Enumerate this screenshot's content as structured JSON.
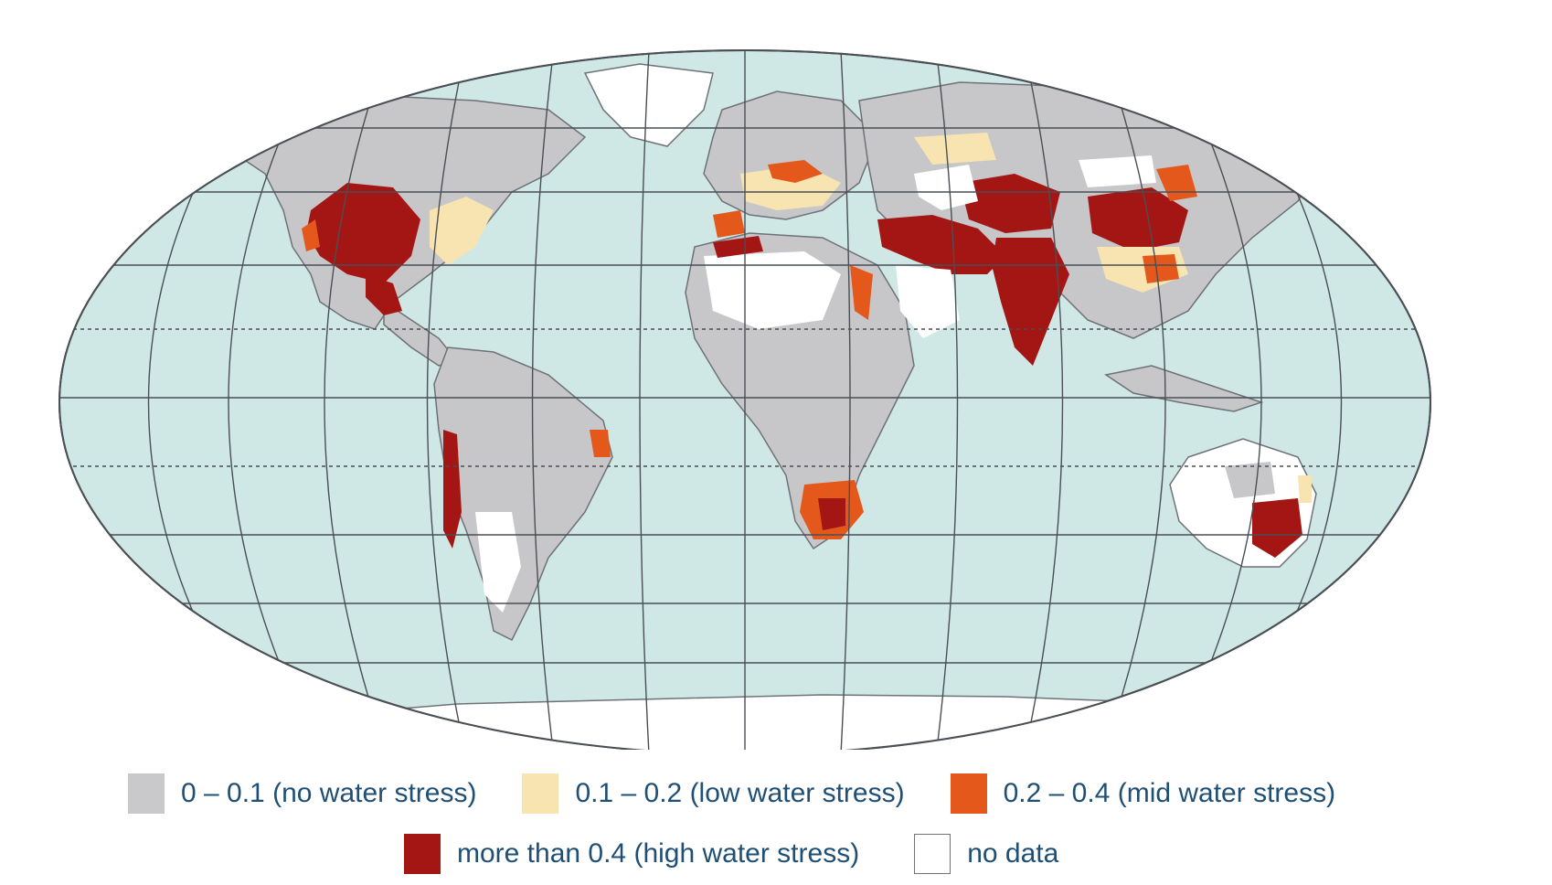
{
  "map": {
    "ocean_color": "#cfe8e6",
    "graticule_color": "#4a4f55",
    "land_color": "#c7c7c9",
    "border_color": "#6e7177"
  },
  "legend": {
    "items": [
      {
        "key": "none",
        "label": "0 – 0.1 (no water stress)",
        "color": "#c9c9cb"
      },
      {
        "key": "low",
        "label": "0.1 – 0.2 (low water stress)",
        "color": "#f7e4b0"
      },
      {
        "key": "mid",
        "label": "0.2 – 0.4 (mid water stress)",
        "color": "#e5581b"
      },
      {
        "key": "high",
        "label": "more than 0.4 (high water stress)",
        "color": "#a31614"
      },
      {
        "key": "nodata",
        "label": "no data",
        "color": "#ffffff"
      }
    ]
  }
}
